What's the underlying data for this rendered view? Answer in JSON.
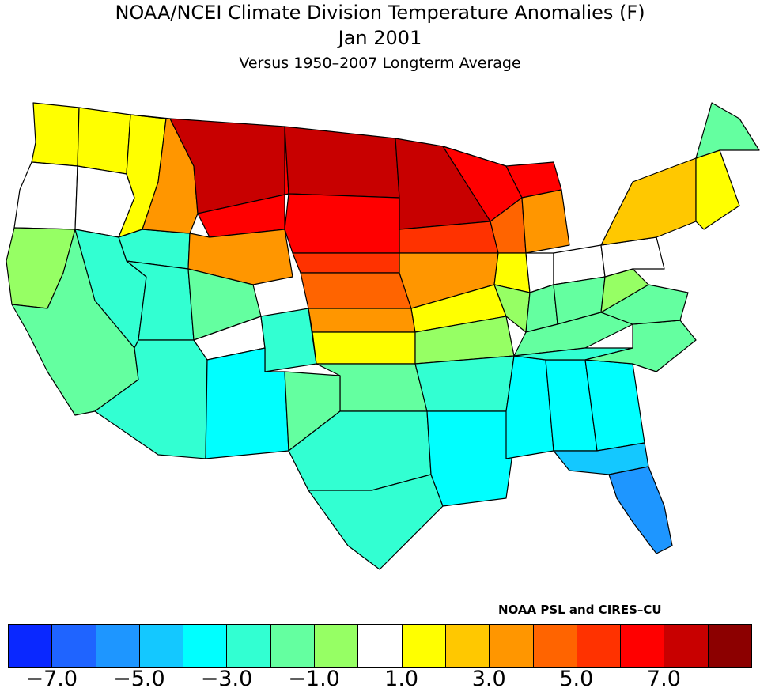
{
  "title": "NOAA/NCEI Climate Division Temperature Anomalies (F)",
  "subtitle": "Jan 2001",
  "baseline": "Versus 1950–2007 Longterm Average",
  "credit": "NOAA PSL and CIRES–CU",
  "legend": {
    "colors": [
      "#0a28ff",
      "#1f64ff",
      "#1e96ff",
      "#14c8ff",
      "#00ffff",
      "#32ffd2",
      "#64ffa0",
      "#96ff64",
      "#ffffff",
      "#ffff00",
      "#ffc800",
      "#ff9600",
      "#ff6400",
      "#ff3200",
      "#ff0000",
      "#c80000",
      "#8c0000"
    ],
    "ticks": [
      "−7.0",
      "−5.0",
      "−3.0",
      "−1.0",
      "1.0",
      "3.0",
      "5.0",
      "7.0"
    ],
    "tick_values": [
      -7,
      -5,
      -3,
      -1,
      1,
      3,
      5,
      7
    ]
  },
  "chart_data": {
    "type": "heatmap",
    "title": "NOAA/NCEI Climate Division Temperature Anomalies (F)",
    "period": "Jan 2001",
    "units": "F",
    "class_breaks": [
      -8,
      -7,
      -6,
      -5,
      -4,
      -3,
      -2,
      -1,
      0,
      1,
      2,
      3,
      4,
      5,
      6,
      7,
      8
    ],
    "regions": [
      {
        "name": "Washington west",
        "anomaly": 1.5
      },
      {
        "name": "Washington east",
        "anomaly": 1.5
      },
      {
        "name": "Oregon west",
        "anomaly": 0.5
      },
      {
        "name": "Oregon east",
        "anomaly": 0.5
      },
      {
        "name": "California north coast",
        "anomaly": -0.5
      },
      {
        "name": "California south",
        "anomaly": -1.5
      },
      {
        "name": "Idaho north",
        "anomaly": 1.5
      },
      {
        "name": "Idaho south",
        "anomaly": -2.5
      },
      {
        "name": "Nevada",
        "anomaly": -2.5
      },
      {
        "name": "Utah",
        "anomaly": -2.5
      },
      {
        "name": "Arizona",
        "anomaly": -2.5
      },
      {
        "name": "Montana west",
        "anomaly": 3.5
      },
      {
        "name": "Montana north-central",
        "anomaly": 7.5
      },
      {
        "name": "Montana east",
        "anomaly": 6.5
      },
      {
        "name": "Wyoming north",
        "anomaly": 3.5
      },
      {
        "name": "Wyoming south",
        "anomaly": -1.5
      },
      {
        "name": "Colorado west",
        "anomaly": 0.5
      },
      {
        "name": "Colorado east",
        "anomaly": -2.5
      },
      {
        "name": "New Mexico",
        "anomaly": -3.5
      },
      {
        "name": "North Dakota",
        "anomaly": 7.5
      },
      {
        "name": "South Dakota",
        "anomaly": 6.5
      },
      {
        "name": "Minnesota",
        "anomaly": 7.5
      },
      {
        "name": "Nebraska north",
        "anomaly": 5.5
      },
      {
        "name": "Nebraska south",
        "anomaly": 4.5
      },
      {
        "name": "Kansas north",
        "anomaly": 3.5
      },
      {
        "name": "Kansas south",
        "anomaly": 1.5
      },
      {
        "name": "Oklahoma",
        "anomaly": -1.5
      },
      {
        "name": "Texas panhandle",
        "anomaly": -1.5
      },
      {
        "name": "Texas central",
        "anomaly": -2.5
      },
      {
        "name": "Texas south",
        "anomaly": -2.5
      },
      {
        "name": "Iowa north",
        "anomaly": 5.5
      },
      {
        "name": "Iowa south",
        "anomaly": 3.5
      },
      {
        "name": "Missouri north",
        "anomaly": 1.5
      },
      {
        "name": "Missouri south",
        "anomaly": -0.5
      },
      {
        "name": "Arkansas",
        "anomaly": -2.5
      },
      {
        "name": "Louisiana",
        "anomaly": -3.5
      },
      {
        "name": "Mississippi",
        "anomaly": -3.5
      },
      {
        "name": "Alabama",
        "anomaly": -3.5
      },
      {
        "name": "Georgia",
        "anomaly": -3.5
      },
      {
        "name": "Florida north",
        "anomaly": -4.5
      },
      {
        "name": "Florida peninsula",
        "anomaly": -5.5
      },
      {
        "name": "Wisconsin north",
        "anomaly": 6.5
      },
      {
        "name": "Wisconsin south",
        "anomaly": 4.5
      },
      {
        "name": "Michigan upper",
        "anomaly": 6.5
      },
      {
        "name": "Michigan lower",
        "anomaly": 3.5
      },
      {
        "name": "Illinois north",
        "anomaly": 1.5
      },
      {
        "name": "Illinois south",
        "anomaly": -0.5
      },
      {
        "name": "Indiana north",
        "anomaly": 0.5
      },
      {
        "name": "Indiana south",
        "anomaly": -1.5
      },
      {
        "name": "Ohio north",
        "anomaly": 0.5
      },
      {
        "name": "Ohio south",
        "anomaly": -1.5
      },
      {
        "name": "Kentucky",
        "anomaly": -1.5
      },
      {
        "name": "Tennessee",
        "anomaly": -2.5
      },
      {
        "name": "Carolinas",
        "anomaly": -1.5
      },
      {
        "name": "Virginia",
        "anomaly": -1.5
      },
      {
        "name": "West Virginia",
        "anomaly": -0.5
      },
      {
        "name": "Pennsylvania",
        "anomaly": 0.5
      },
      {
        "name": "New York",
        "anomaly": 2.5
      },
      {
        "name": "New England",
        "anomaly": 1.5
      },
      {
        "name": "Maine",
        "anomaly": -1.5
      }
    ]
  }
}
